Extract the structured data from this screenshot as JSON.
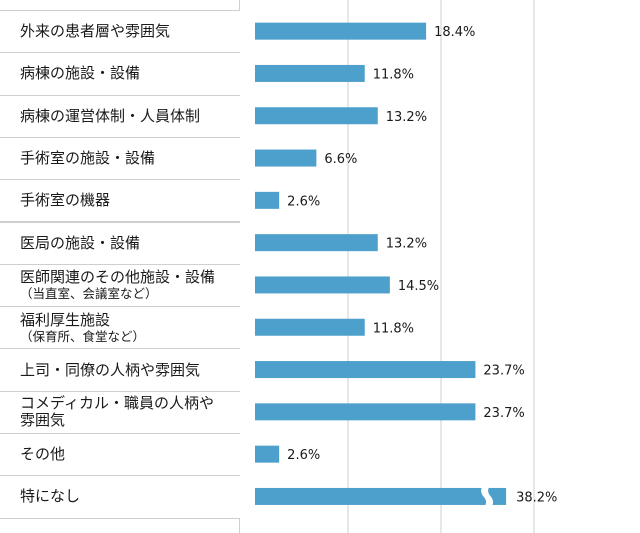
{
  "chart_data": {
    "type": "bar",
    "orientation": "horizontal",
    "categories": [
      {
        "main": "外来の患者層や雰囲気",
        "sub": ""
      },
      {
        "main": "病棟の施設・設備",
        "sub": ""
      },
      {
        "main": "病棟の運営体制・人員体制",
        "sub": ""
      },
      {
        "main": "手術室の施設・設備",
        "sub": ""
      },
      {
        "main": "手術室の機器",
        "sub": ""
      },
      {
        "main": "医局の施設・設備",
        "sub": ""
      },
      {
        "main": "医師関連のその他施設・設備",
        "sub": "（当直室、会議室など）"
      },
      {
        "main": "福利厚生施設",
        "sub": "（保育所、食堂など）"
      },
      {
        "main": "上司・同僚の人柄や雰囲気",
        "sub": ""
      },
      {
        "main": "コメディカル・職員の人柄や",
        "sub": "雰囲気"
      },
      {
        "main": "その他",
        "sub": ""
      },
      {
        "main": "特になし",
        "sub": ""
      }
    ],
    "values": [
      18.4,
      11.8,
      13.2,
      6.6,
      2.6,
      13.2,
      14.5,
      11.8,
      23.7,
      23.7,
      2.6,
      38.2
    ],
    "value_labels": [
      "18.4%",
      "11.8%",
      "13.2%",
      "6.6%",
      "2.6%",
      "13.2%",
      "14.5%",
      "11.8%",
      "23.7%",
      "23.7%",
      "2.6%",
      "38.2%"
    ],
    "xlim": [
      0,
      40
    ],
    "axis_break": {
      "category_index": 11,
      "shown_at": 27
    },
    "grid": true,
    "bar_color": "#4ea0cc",
    "grid_color": "#cfcfcf"
  }
}
